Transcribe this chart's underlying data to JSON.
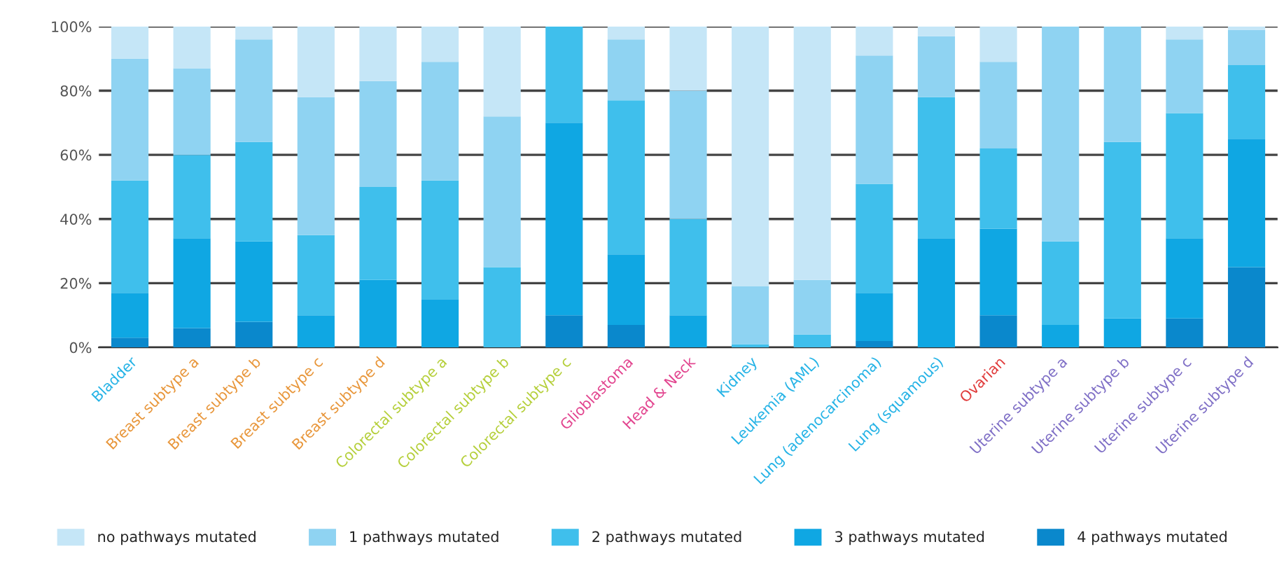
{
  "chart_data": {
    "type": "bar",
    "stacked": true,
    "grid": "y",
    "legend": "bottom",
    "categories": [
      "Bladder",
      "Breast subtype a",
      "Breast subtype b",
      "Breast subtype c",
      "Breast subtype d",
      "Colorectal subtype a",
      "Colorectal subtype b",
      "Colorectal subtype c",
      "Glioblastoma",
      "Head & Neck",
      "Kidney",
      "Leukemia (AML)",
      "Lung (adenocarcinoma)",
      "Lung (squamous)",
      "Ovarian",
      "Uterine subtype a",
      "Uterine subtype b",
      "Uterine subtype c",
      "Uterine subtype d"
    ],
    "ylim": [
      0,
      100
    ],
    "yticks": [
      {
        "value": 0,
        "label": "0%"
      },
      {
        "value": 20,
        "label": "20%"
      },
      {
        "value": 40,
        "label": "40%"
      },
      {
        "value": 60,
        "label": "60%"
      },
      {
        "value": 80,
        "label": "80%"
      },
      {
        "value": 100,
        "label": "100%"
      }
    ],
    "series": [
      {
        "name": "4 pathways mutated",
        "color": "#0a88cc",
        "values": [
          3,
          6,
          8,
          0,
          0,
          0,
          0,
          10,
          7,
          0,
          0,
          0,
          2,
          0,
          10,
          0,
          0,
          9,
          25
        ]
      },
      {
        "name": "3 pathways mutated",
        "color": "#0fa7e3",
        "values": [
          14,
          28,
          25,
          10,
          21,
          15,
          0,
          60,
          22,
          10,
          0,
          0,
          15,
          34,
          27,
          7,
          9,
          25,
          40
        ]
      },
      {
        "name": "2 pathways mutated",
        "color": "#3fbfec",
        "values": [
          35,
          26,
          31,
          25,
          29,
          37,
          25,
          30,
          48,
          30,
          1,
          4,
          34,
          44,
          25,
          26,
          55,
          39,
          23
        ]
      },
      {
        "name": "1 pathways mutated",
        "color": "#8fd3f2",
        "values": [
          38,
          27,
          32,
          43,
          33,
          37,
          47,
          0,
          19,
          40,
          18,
          17,
          40,
          19,
          27,
          67,
          36,
          23,
          11
        ]
      },
      {
        "name": "no pathways mutated",
        "color": "#c5e6f7",
        "values": [
          10,
          13,
          4,
          22,
          17,
          11,
          28,
          0,
          4,
          20,
          81,
          79,
          9,
          3,
          11,
          0,
          0,
          4,
          1
        ]
      }
    ]
  }
}
